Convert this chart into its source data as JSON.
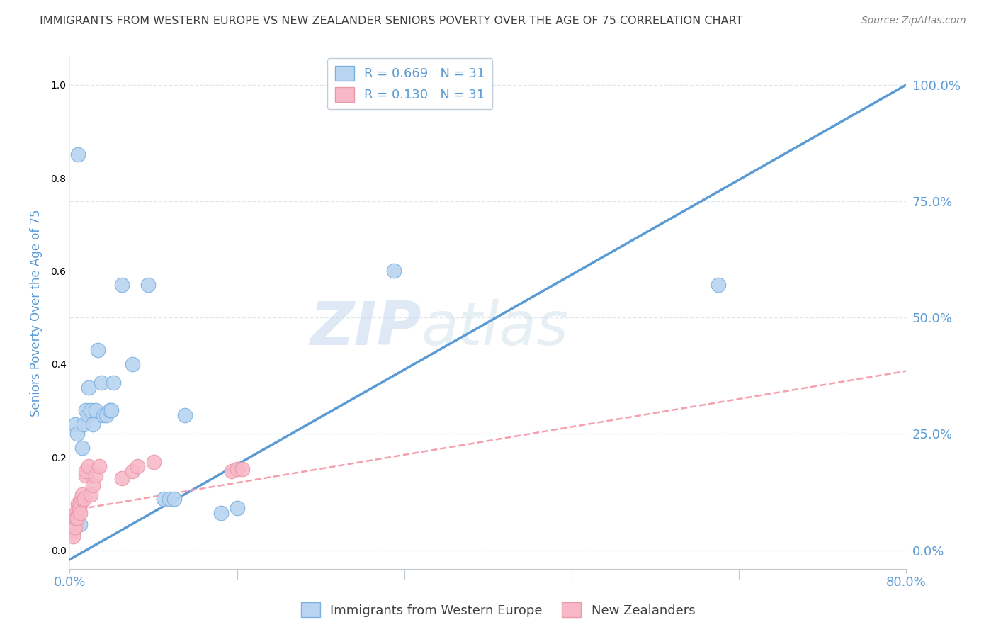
{
  "title": "IMMIGRANTS FROM WESTERN EUROPE VS NEW ZEALANDER SENIORS POVERTY OVER THE AGE OF 75 CORRELATION CHART",
  "source": "Source: ZipAtlas.com",
  "ylabel": "Seniors Poverty Over the Age of 75",
  "ytick_labels": [
    "0.0%",
    "25.0%",
    "50.0%",
    "75.0%",
    "100.0%"
  ],
  "ytick_values": [
    0.0,
    0.25,
    0.5,
    0.75,
    1.0
  ],
  "legend_r_blue": "R = 0.669",
  "legend_n_blue": "N = 31",
  "legend_r_pink": "R = 0.130",
  "legend_n_pink": "N = 31",
  "legend_label_blue": "Immigrants from Western Europe",
  "legend_label_pink": "New Zealanders",
  "blue_scatter_x": [
    0.003,
    0.005,
    0.007,
    0.008,
    0.01,
    0.012,
    0.013,
    0.015,
    0.017,
    0.018,
    0.02,
    0.022,
    0.025,
    0.027,
    0.03,
    0.032,
    0.035,
    0.038,
    0.04,
    0.042,
    0.05,
    0.06,
    0.075,
    0.09,
    0.095,
    0.1,
    0.11,
    0.145,
    0.16,
    0.31,
    0.62
  ],
  "blue_scatter_y": [
    0.05,
    0.27,
    0.25,
    0.85,
    0.055,
    0.22,
    0.27,
    0.3,
    0.29,
    0.35,
    0.3,
    0.27,
    0.3,
    0.43,
    0.36,
    0.29,
    0.29,
    0.3,
    0.3,
    0.36,
    0.57,
    0.4,
    0.57,
    0.11,
    0.11,
    0.11,
    0.29,
    0.08,
    0.09,
    0.6,
    0.57
  ],
  "pink_scatter_x": [
    0.001,
    0.002,
    0.003,
    0.003,
    0.004,
    0.005,
    0.005,
    0.006,
    0.006,
    0.007,
    0.008,
    0.009,
    0.01,
    0.01,
    0.011,
    0.012,
    0.014,
    0.015,
    0.015,
    0.018,
    0.02,
    0.022,
    0.025,
    0.028,
    0.05,
    0.06,
    0.065,
    0.08,
    0.155,
    0.16,
    0.165
  ],
  "pink_scatter_y": [
    0.04,
    0.05,
    0.04,
    0.03,
    0.06,
    0.07,
    0.05,
    0.08,
    0.07,
    0.07,
    0.1,
    0.09,
    0.1,
    0.08,
    0.11,
    0.12,
    0.11,
    0.16,
    0.17,
    0.18,
    0.12,
    0.14,
    0.16,
    0.18,
    0.155,
    0.17,
    0.18,
    0.19,
    0.17,
    0.175,
    0.175
  ],
  "blue_line_x0": 0.0,
  "blue_line_y0": -0.02,
  "blue_line_x1": 0.8,
  "blue_line_y1": 1.0,
  "pink_line_x0": 0.0,
  "pink_line_y0": 0.085,
  "pink_line_x1": 0.8,
  "pink_line_y1": 0.385,
  "blue_line_color": "#5b9bd5",
  "pink_line_color": "#f4a0b0",
  "scatter_blue_color": "#b8d4f0",
  "scatter_pink_color": "#f8b8c8",
  "scatter_blue_edge": "#7ab0e0",
  "scatter_pink_edge": "#e898a8",
  "watermark_zip": "ZIP",
  "watermark_atlas": "atlas",
  "background_color": "#ffffff",
  "grid_color": "#dde8f0",
  "title_color": "#404040",
  "axis_label_color": "#5b9bd5",
  "source_color": "#808080",
  "xlim": [
    0.0,
    0.8
  ],
  "ylim": [
    -0.04,
    1.06
  ],
  "xmin_label": "0.0%",
  "xmax_label": "80.0%"
}
